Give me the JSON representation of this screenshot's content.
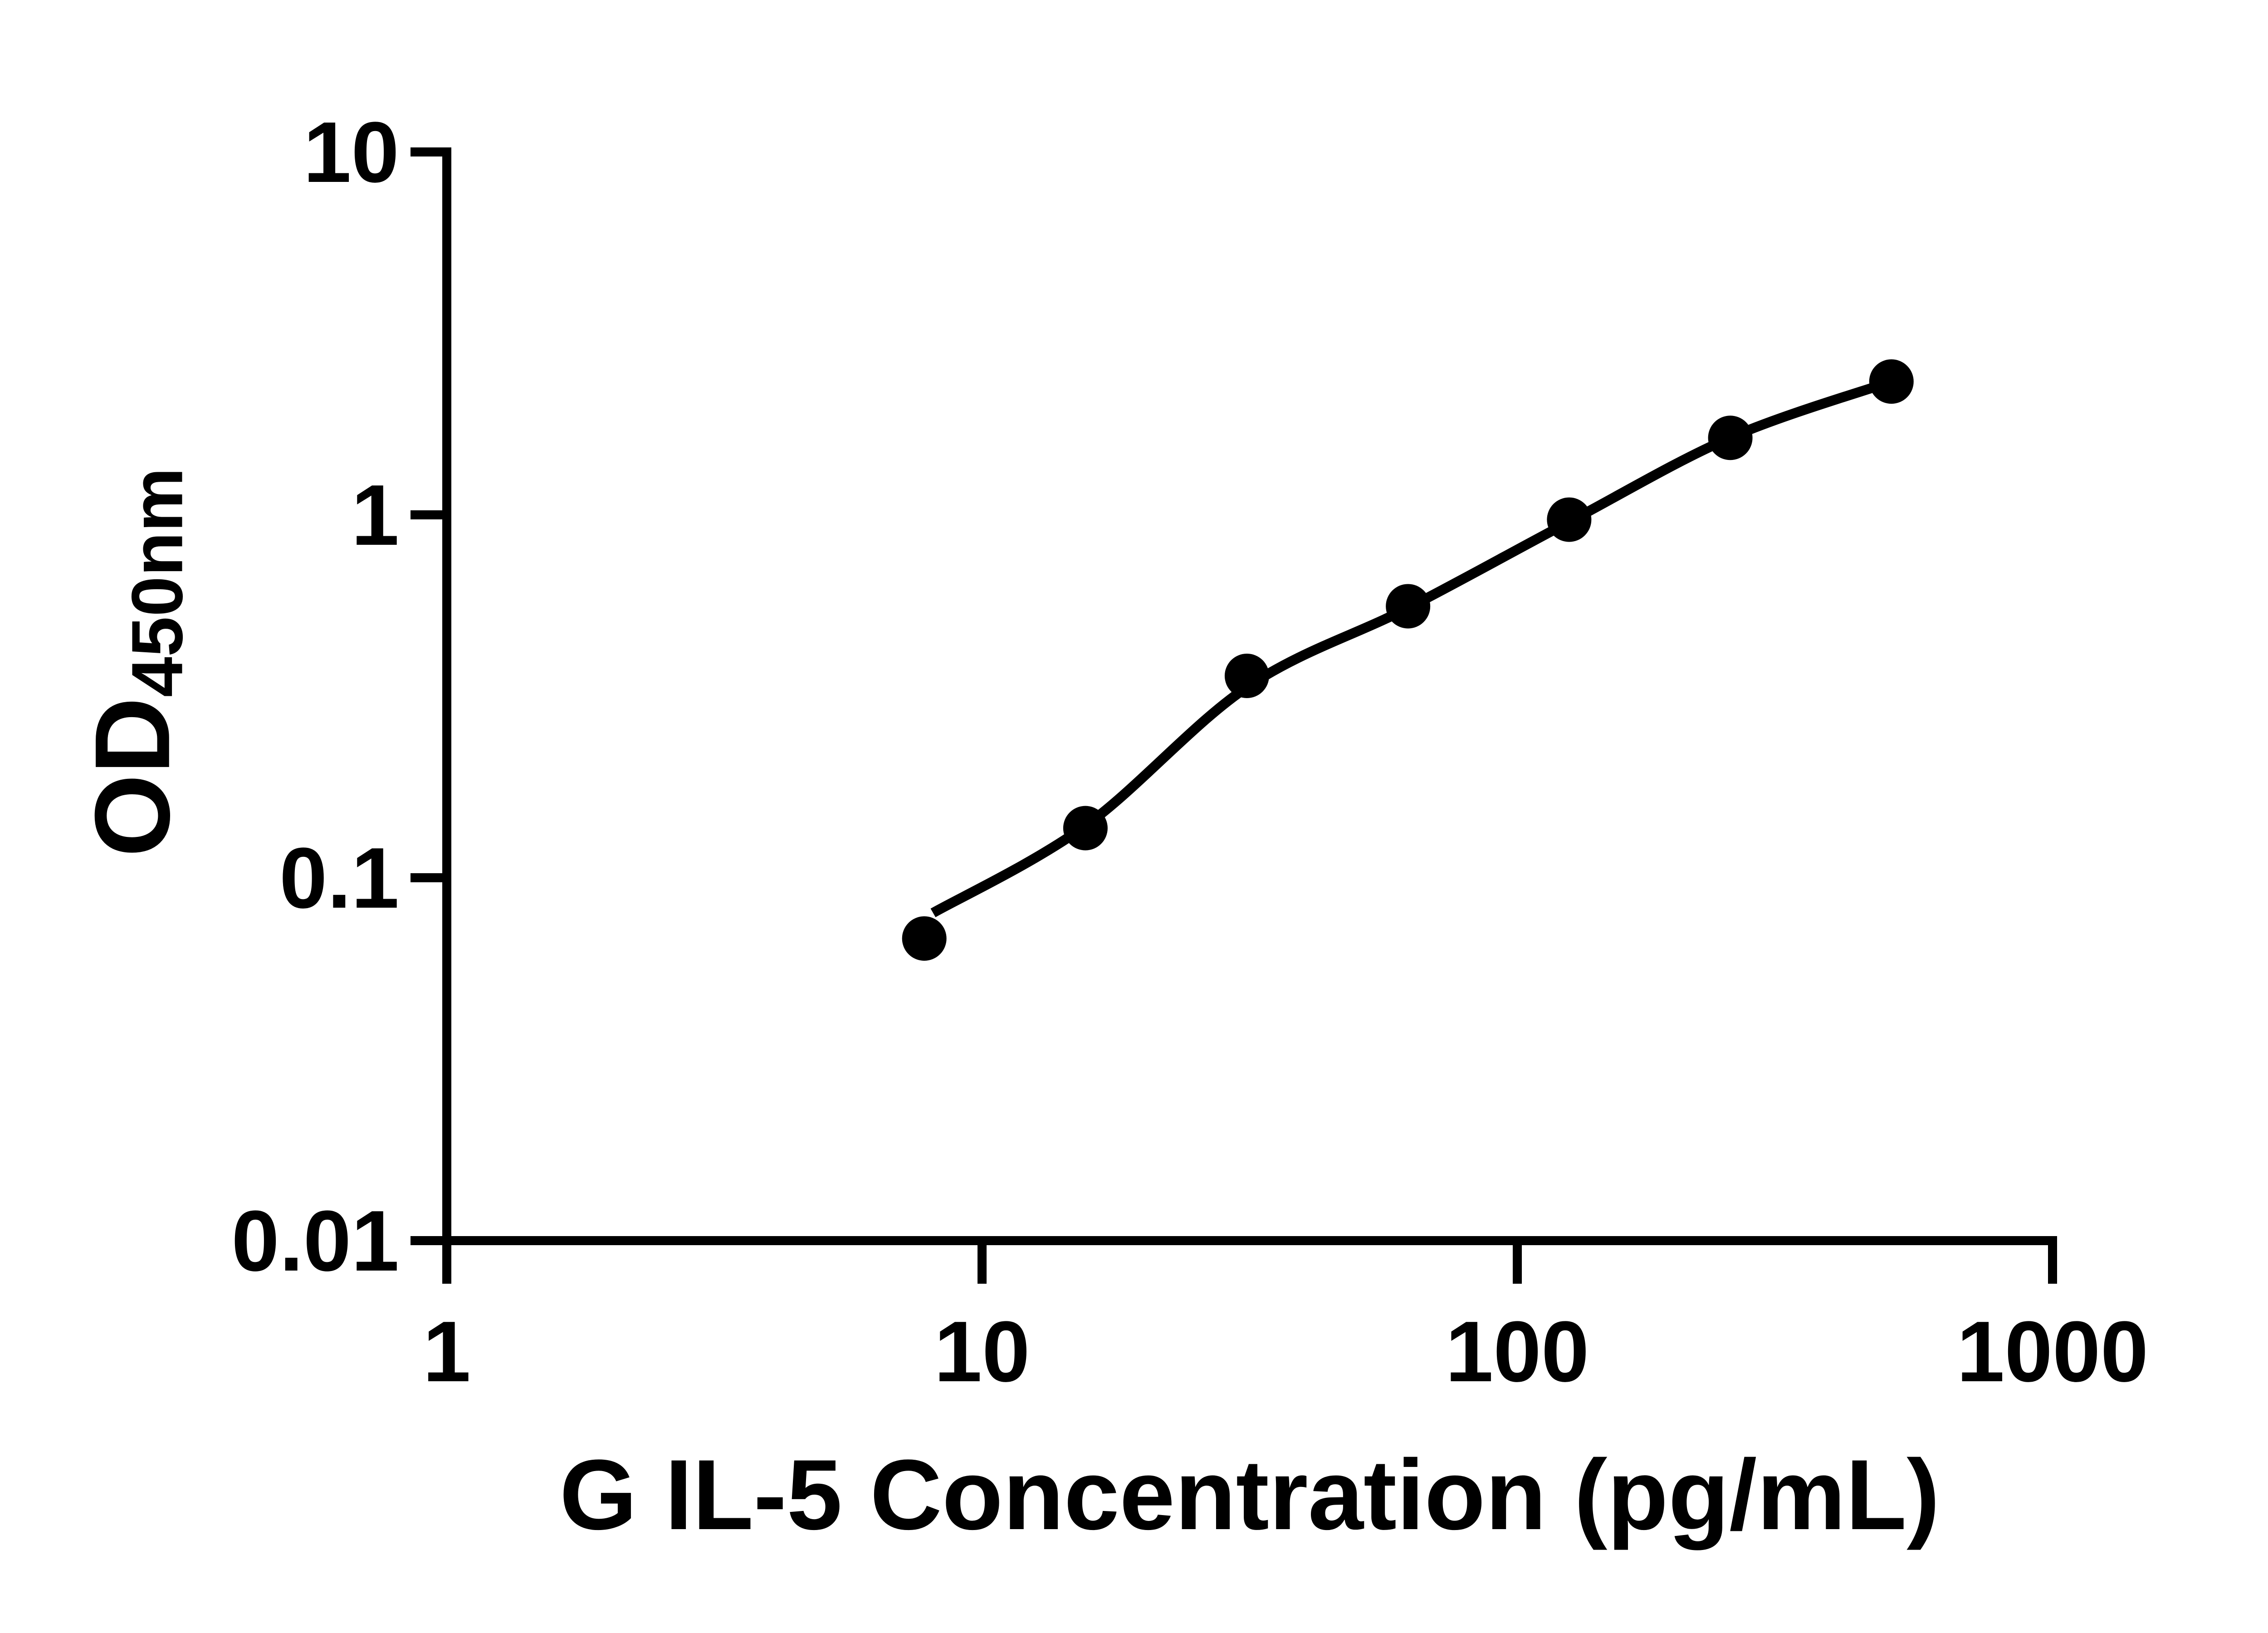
{
  "figure": {
    "background_color": "#ffffff",
    "ink_color": "#000000"
  },
  "chart_data": {
    "type": "scatter",
    "title": "",
    "xlabel": "G IL-5 Concentration (pg/mL)",
    "ylabel_base": "OD",
    "ylabel_subscript": "450nm",
    "x_scale": "log10",
    "y_scale": "log10",
    "xlim": [
      1,
      1000
    ],
    "ylim": [
      0.01,
      10
    ],
    "grid": false,
    "legend": false,
    "marker_shape": "filled-circle",
    "marker_color": "#000000",
    "curve_color": "#000000",
    "x_ticks": [
      {
        "value": 1,
        "label": "1"
      },
      {
        "value": 10,
        "label": "10"
      },
      {
        "value": 100,
        "label": "100"
      },
      {
        "value": 1000,
        "label": "1000"
      }
    ],
    "y_ticks": [
      {
        "value": 10,
        "label": "10"
      },
      {
        "value": 1,
        "label": "1"
      },
      {
        "value": 0.1,
        "label": "0.1"
      },
      {
        "value": 0.01,
        "label": "0.01"
      }
    ],
    "points": [
      {
        "x": 7.8,
        "od": 0.068
      },
      {
        "x": 15.6,
        "od": 0.137
      },
      {
        "x": 31.25,
        "od": 0.36
      },
      {
        "x": 62.5,
        "od": 0.56
      },
      {
        "x": 125,
        "od": 0.97
      },
      {
        "x": 250,
        "od": 1.63
      },
      {
        "x": 500,
        "od": 2.33
      }
    ],
    "curve_samples": [
      {
        "x": 8.1,
        "od": 0.08
      },
      {
        "x": 15.6,
        "od": 0.139
      },
      {
        "x": 31.25,
        "od": 0.335
      },
      {
        "x": 62.5,
        "od": 0.554
      },
      {
        "x": 125,
        "od": 0.957
      },
      {
        "x": 250,
        "od": 1.632
      },
      {
        "x": 500,
        "od": 2.33
      }
    ]
  }
}
